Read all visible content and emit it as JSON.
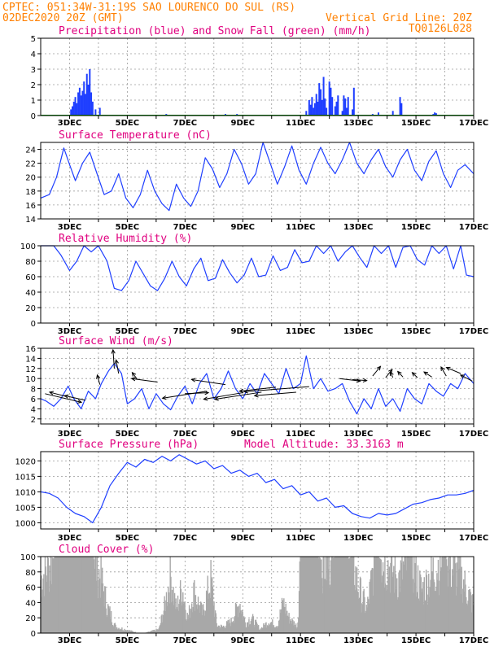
{
  "header": {
    "line1_left": "CPTEC:  051:34W-31:19S  SAO LOURENCO DO SUL (RS)",
    "line2_left": "02DEC2020 20Z (GMT)",
    "line2_right": "Vertical Grid Line: 20Z",
    "line3_right": "TQ0126L028"
  },
  "x_ticks": [
    "3DEC",
    "5DEC",
    "7DEC",
    "9DEC",
    "11DEC",
    "13DEC",
    "15DEC",
    "17DEC"
  ],
  "colors": {
    "line": "#1f3fff",
    "snow": "#00a000",
    "cloud": "#a8a8a8",
    "title": "#e0007f",
    "header": "#ff8000"
  },
  "chart_data": [
    {
      "type": "bar",
      "title": "Precipitation (blue) and Snow Fall (green) (mm/h)",
      "xlim": [
        2.0,
        17.0
      ],
      "ylim": [
        0,
        5
      ],
      "yticks": [
        0,
        1,
        2,
        3,
        4,
        5
      ],
      "grid": true,
      "series": [
        {
          "name": "Precipitation",
          "color": "#1f3fff",
          "x": [
            3.05,
            3.1,
            3.15,
            3.2,
            3.25,
            3.3,
            3.35,
            3.4,
            3.45,
            3.5,
            3.55,
            3.6,
            3.65,
            3.7,
            3.75,
            3.8,
            3.9,
            4.05,
            6.35,
            8.4,
            8.8,
            11.2,
            11.3,
            11.35,
            11.4,
            11.45,
            11.5,
            11.55,
            11.6,
            11.65,
            11.7,
            11.75,
            11.8,
            11.85,
            11.9,
            12.0,
            12.05,
            12.1,
            12.2,
            12.25,
            12.3,
            12.45,
            12.5,
            12.55,
            12.6,
            12.65,
            12.8,
            12.85,
            13.5,
            13.7,
            14.2,
            14.45,
            14.5,
            15.6,
            15.65,
            15.7
          ],
          "values": [
            0.4,
            0.6,
            0.9,
            1.2,
            0.8,
            1.5,
            1.8,
            1.3,
            1.6,
            2.2,
            1.4,
            2.7,
            2.0,
            3.0,
            1.5,
            0.9,
            0.4,
            0.5,
            0.1,
            0.1,
            0.1,
            0.3,
            1.0,
            0.7,
            1.2,
            0.5,
            0.8,
            1.4,
            0.9,
            2.1,
            1.7,
            1.0,
            2.5,
            1.1,
            0.5,
            2.2,
            1.8,
            1.2,
            0.6,
            0.9,
            1.3,
            0.3,
            1.3,
            1.1,
            0.5,
            1.2,
            0.4,
            1.8,
            0.1,
            0.2,
            0.3,
            1.2,
            0.8,
            0.1,
            0.2,
            0.15
          ]
        },
        {
          "name": "Snow Fall",
          "color": "#00a000",
          "x": [],
          "values": []
        }
      ]
    },
    {
      "type": "line",
      "title": "Surface Temperature (nC)",
      "xlim": [
        2.0,
        17.0
      ],
      "ylim": [
        14,
        25
      ],
      "yticks": [
        14,
        16,
        18,
        20,
        22,
        24
      ],
      "grid": true,
      "x": [
        2.0,
        2.3,
        2.55,
        2.8,
        3.0,
        3.2,
        3.45,
        3.7,
        3.95,
        4.2,
        4.45,
        4.7,
        4.95,
        5.2,
        5.45,
        5.7,
        5.95,
        6.2,
        6.45,
        6.7,
        6.95,
        7.2,
        7.45,
        7.7,
        7.95,
        8.2,
        8.45,
        8.7,
        8.95,
        9.2,
        9.45,
        9.7,
        9.95,
        10.2,
        10.45,
        10.7,
        10.95,
        11.2,
        11.45,
        11.7,
        11.95,
        12.2,
        12.45,
        12.7,
        12.95,
        13.2,
        13.45,
        13.7,
        13.95,
        14.2,
        14.45,
        14.7,
        14.95,
        15.2,
        15.45,
        15.7,
        15.95,
        16.2,
        16.45,
        16.7,
        17.0
      ],
      "values": [
        17,
        17.5,
        20,
        24.2,
        21.8,
        19.5,
        22,
        23.6,
        20.5,
        17.5,
        18,
        20.5,
        17,
        15.6,
        17.5,
        21,
        18,
        16.2,
        15.2,
        19,
        17,
        15.8,
        18,
        22.8,
        21.2,
        18.5,
        20.5,
        24,
        22,
        19,
        20.5,
        25,
        22,
        19,
        21.5,
        24.5,
        21,
        19,
        22,
        24.3,
        22,
        20.5,
        22.5,
        25,
        22,
        20.5,
        22.5,
        24,
        21.5,
        20,
        22.5,
        24,
        21,
        19.5,
        22.3,
        23.8,
        20.5,
        18.5,
        21,
        21.8,
        20.5
      ]
    },
    {
      "type": "line",
      "title": "Relative Humidity (%)",
      "xlim": [
        2.0,
        17.0
      ],
      "ylim": [
        0,
        100
      ],
      "yticks": [
        0,
        20,
        40,
        60,
        80,
        100
      ],
      "grid": true,
      "x": [
        2.0,
        2.2,
        2.45,
        2.7,
        3.0,
        3.25,
        3.5,
        3.75,
        4.0,
        4.3,
        4.55,
        4.8,
        5.05,
        5.3,
        5.55,
        5.8,
        6.05,
        6.3,
        6.55,
        6.8,
        7.05,
        7.3,
        7.55,
        7.8,
        8.05,
        8.3,
        8.55,
        8.8,
        9.05,
        9.3,
        9.55,
        9.8,
        10.05,
        10.3,
        10.55,
        10.8,
        11.05,
        11.3,
        11.55,
        11.8,
        12.05,
        12.3,
        12.55,
        12.8,
        13.05,
        13.3,
        13.55,
        13.8,
        14.05,
        14.3,
        14.55,
        14.8,
        15.05,
        15.3,
        15.55,
        15.8,
        16.05,
        16.3,
        16.55,
        16.75,
        17.0
      ],
      "values": [
        100,
        100,
        100,
        88,
        68,
        80,
        100,
        92,
        100,
        80,
        45,
        42,
        55,
        80,
        64,
        48,
        42,
        58,
        80,
        60,
        48,
        70,
        84,
        55,
        58,
        82,
        65,
        52,
        62,
        84,
        60,
        62,
        87,
        68,
        72,
        95,
        78,
        80,
        100,
        90,
        100,
        80,
        92,
        100,
        85,
        72,
        100,
        90,
        100,
        72,
        98,
        100,
        82,
        75,
        100,
        90,
        100,
        70,
        100,
        62,
        60
      ]
    },
    {
      "type": "line",
      "title": "Surface Wind (m/s)",
      "xlim": [
        2.0,
        17.0
      ],
      "ylim": [
        1,
        16
      ],
      "yticks": [
        2,
        4,
        6,
        8,
        10,
        12,
        14,
        16
      ],
      "grid": true,
      "x": [
        2.0,
        2.2,
        2.45,
        2.7,
        2.95,
        3.15,
        3.4,
        3.65,
        3.9,
        4.1,
        4.35,
        4.55,
        4.8,
        5.0,
        5.25,
        5.5,
        5.75,
        6.0,
        6.25,
        6.5,
        6.75,
        7.0,
        7.25,
        7.5,
        7.75,
        8.0,
        8.25,
        8.5,
        8.75,
        9.0,
        9.25,
        9.5,
        9.75,
        10.0,
        10.25,
        10.5,
        10.75,
        11.0,
        11.2,
        11.45,
        11.7,
        11.95,
        12.2,
        12.45,
        12.7,
        12.95,
        13.2,
        13.45,
        13.7,
        13.95,
        14.2,
        14.45,
        14.7,
        14.95,
        15.2,
        15.45,
        15.7,
        15.95,
        16.2,
        16.45,
        16.7,
        17.0
      ],
      "values": [
        6,
        5.5,
        4.5,
        6,
        8.5,
        6,
        4,
        7.5,
        6,
        9,
        11.5,
        13,
        11,
        5,
        6,
        8,
        4,
        7,
        5,
        3.8,
        6.5,
        8.5,
        5,
        9,
        11,
        6,
        8,
        11.5,
        8,
        6,
        9,
        7,
        11,
        9,
        7,
        12,
        8,
        9,
        14.5,
        8,
        10,
        7.5,
        8,
        9,
        5.5,
        3,
        6,
        4,
        8,
        4.5,
        6,
        3.5,
        8,
        6,
        5,
        9,
        7.5,
        6.5,
        9,
        8,
        11,
        9
      ]
    },
    {
      "type": "line",
      "title": "Surface Pressure (hPa)",
      "subtitle": "Model Altitude: 33.3163 m",
      "xlim": [
        2.0,
        17.0
      ],
      "ylim": [
        998,
        1023
      ],
      "yticks": [
        1000,
        1005,
        1010,
        1015,
        1020
      ],
      "grid": true,
      "x": [
        2.0,
        2.3,
        2.6,
        2.9,
        3.2,
        3.5,
        3.8,
        4.1,
        4.4,
        4.7,
        5.0,
        5.3,
        5.6,
        5.9,
        6.2,
        6.5,
        6.8,
        7.1,
        7.4,
        7.7,
        8.0,
        8.3,
        8.6,
        8.9,
        9.2,
        9.5,
        9.8,
        10.1,
        10.4,
        10.7,
        11.0,
        11.3,
        11.6,
        11.9,
        12.2,
        12.5,
        12.8,
        13.1,
        13.4,
        13.7,
        14.0,
        14.3,
        14.6,
        14.9,
        15.2,
        15.5,
        15.8,
        16.1,
        16.4,
        16.7,
        17.0
      ],
      "values": [
        1010,
        1009.5,
        1008,
        1005,
        1003,
        1002,
        1000,
        1005,
        1012,
        1016,
        1019.5,
        1018,
        1020.5,
        1019.5,
        1021.5,
        1020,
        1022,
        1020.5,
        1019,
        1020,
        1017.5,
        1018.5,
        1016,
        1017,
        1015,
        1016,
        1013,
        1014,
        1011,
        1012,
        1009,
        1010,
        1007,
        1008,
        1005,
        1005.5,
        1003,
        1002,
        1001.5,
        1003,
        1002.5,
        1003,
        1004.5,
        1006,
        1006.5,
        1007.5,
        1008,
        1009,
        1009,
        1009.5,
        1010.5
      ]
    },
    {
      "type": "bar",
      "title": "Cloud Cover (%)",
      "xlim": [
        2.0,
        17.0
      ],
      "ylim": [
        0,
        100
      ],
      "yticks": [
        0,
        20,
        40,
        60,
        80,
        100
      ],
      "grid": true,
      "profile_x": [
        2.0,
        2.5,
        2.6,
        3.0,
        3.8,
        4.1,
        4.3,
        4.6,
        5.4,
        5.6,
        6.1,
        6.3,
        6.5,
        6.7,
        6.9,
        7.1,
        7.3,
        7.6,
        7.9,
        8.1,
        8.3,
        8.6,
        8.9,
        9.1,
        9.3,
        9.6,
        9.9,
        10.2,
        10.4,
        10.6,
        10.9,
        11.0,
        11.3,
        11.6,
        11.9,
        12.2,
        12.5,
        12.8,
        13.0,
        13.3,
        13.6,
        14.0,
        14.4,
        14.8,
        15.2,
        15.6,
        16.0,
        16.3,
        16.6,
        17.0
      ],
      "profile_y": [
        70,
        100,
        100,
        100,
        100,
        70,
        35,
        8,
        0,
        0,
        5,
        35,
        75,
        30,
        60,
        18,
        55,
        25,
        70,
        10,
        8,
        15,
        40,
        12,
        20,
        5,
        15,
        10,
        40,
        20,
        8,
        100,
        100,
        98,
        90,
        100,
        100,
        95,
        60,
        30,
        100,
        90,
        70,
        100,
        55,
        80,
        100,
        80,
        70,
        35
      ]
    }
  ],
  "wind_arrows": {
    "note_style": "black arrows",
    "vectors": [
      {
        "x": 2.15,
        "y": 7,
        "dx": 1.4,
        "dy": -1.7
      },
      {
        "x": 2.85,
        "y": 6.5,
        "dx": -0.6,
        "dy": 0.8
      },
      {
        "x": 3.55,
        "y": 5.7,
        "dx": -0.8,
        "dy": 0.9
      },
      {
        "x": 4.05,
        "y": 8.8,
        "dx": -0.1,
        "dy": 1.9
      },
      {
        "x": 4.55,
        "y": 12.0,
        "dx": -0.05,
        "dy": 3.7
      },
      {
        "x": 4.7,
        "y": 11.0,
        "dx": -0.1,
        "dy": 2.7
      },
      {
        "x": 5.35,
        "y": 9.8,
        "dx": -0.2,
        "dy": 1.4
      },
      {
        "x": 6.05,
        "y": 9.3,
        "dx": -1.0,
        "dy": 0.7
      },
      {
        "x": 7.0,
        "y": 7.0,
        "dx": 0.9,
        "dy": 0.2
      },
      {
        "x": 7.75,
        "y": 7.5,
        "dx": -1.7,
        "dy": -1.4
      },
      {
        "x": 8.4,
        "y": 8.8,
        "dx": -1.3,
        "dy": 1.0
      },
      {
        "x": 9.0,
        "y": 7.2,
        "dx": -1.5,
        "dy": -1.3
      },
      {
        "x": 9.65,
        "y": 7.3,
        "dx": -1.8,
        "dy": -1.4
      },
      {
        "x": 10.15,
        "y": 8.3,
        "dx": -1.4,
        "dy": -0.8
      },
      {
        "x": 10.85,
        "y": 7.3,
        "dx": -1.6,
        "dy": -0.7
      },
      {
        "x": 11.3,
        "y": 8.4,
        "dx": -2.5,
        "dy": -1.0
      },
      {
        "x": 12.35,
        "y": 10.0,
        "dx": 0.8,
        "dy": -0.5
      },
      {
        "x": 12.8,
        "y": 9.8,
        "dx": 0.55,
        "dy": -0.2
      },
      {
        "x": 13.5,
        "y": 10.5,
        "dx": 0.3,
        "dy": 1.9
      },
      {
        "x": 13.95,
        "y": 10.2,
        "dx": 0.25,
        "dy": 1.6
      },
      {
        "x": 14.2,
        "y": 10.2,
        "dx": -0.1,
        "dy": 1.1
      },
      {
        "x": 14.55,
        "y": 10.3,
        "dx": -0.2,
        "dy": 1.1
      },
      {
        "x": 15.05,
        "y": 10.2,
        "dx": -0.2,
        "dy": 1.0
      },
      {
        "x": 15.55,
        "y": 10.3,
        "dx": -0.3,
        "dy": 1.0
      },
      {
        "x": 16.05,
        "y": 10.5,
        "dx": -0.2,
        "dy": 1.8
      },
      {
        "x": 16.55,
        "y": 11.0,
        "dx": -0.55,
        "dy": 1.2
      },
      {
        "x": 16.95,
        "y": 9.5,
        "dx": -0.45,
        "dy": 1.2
      }
    ]
  }
}
